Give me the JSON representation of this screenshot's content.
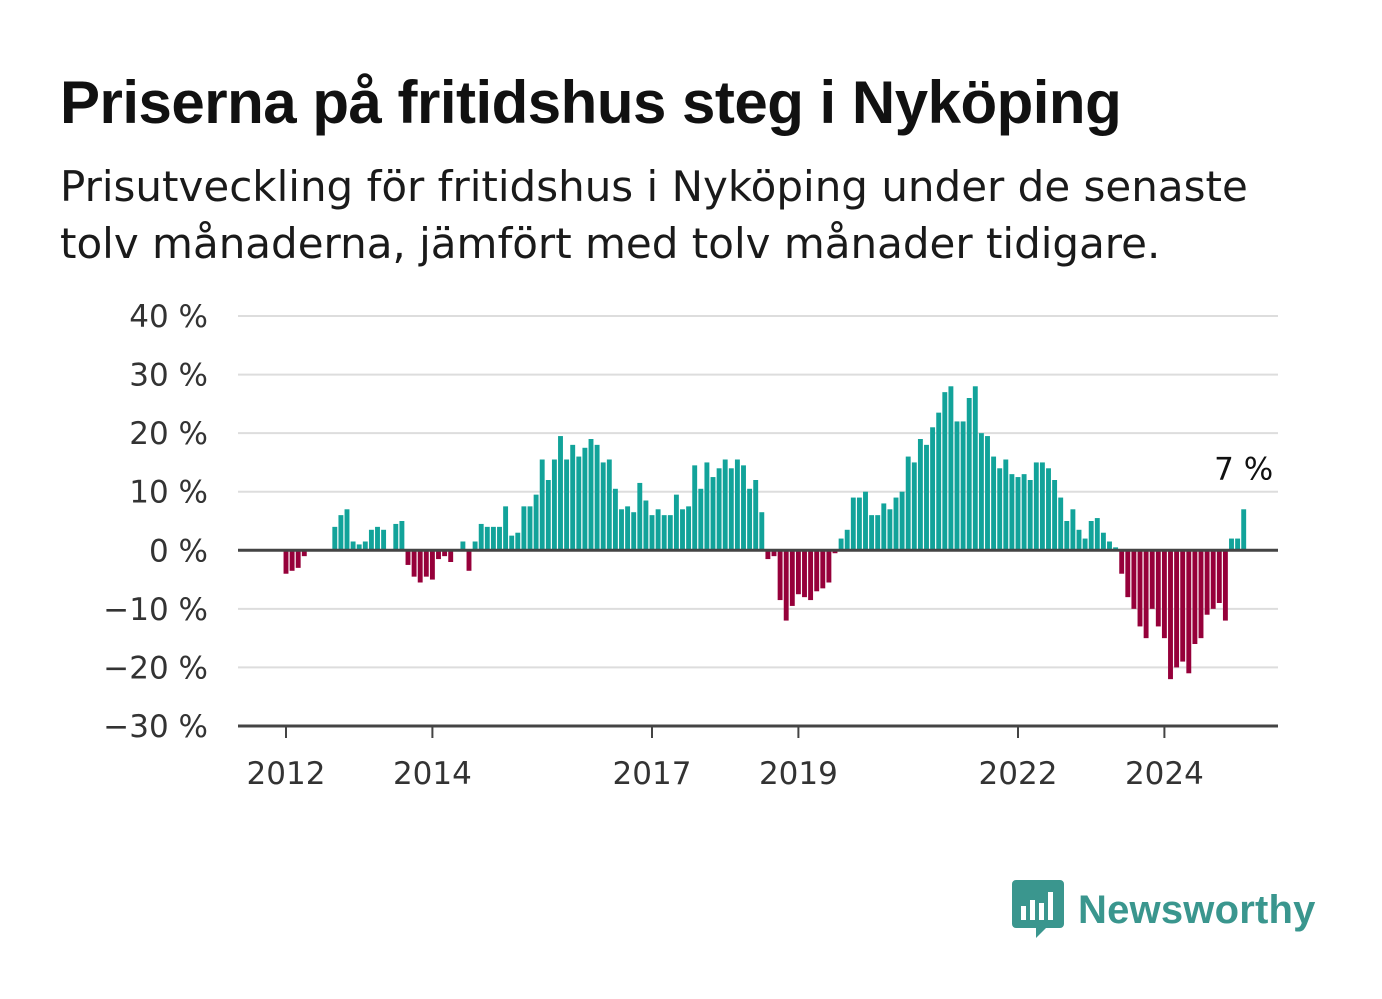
{
  "header": {
    "title": "Priserna på fritidshus steg i Nyköping",
    "subtitle": "Prisutveckling för fritidshus i Nyköping under de senaste tolv månaderna, jämfört med tolv månader tidigare."
  },
  "colors": {
    "positive": "#12a39a",
    "negative": "#96003a",
    "zero_line": "#444444",
    "grid": "#dddddd",
    "brand": "#3a968e"
  },
  "logo": {
    "text": "Newsworthy",
    "icon": "bar-chart-speech-bubble-icon"
  },
  "chart_data": {
    "type": "bar",
    "title": "Priserna på fritidshus steg i Nyköping",
    "subtitle": "Prisutveckling för fritidshus i Nyköping under de senaste tolv månaderna, jämfört med tolv månader tidigare.",
    "xlabel": "",
    "ylabel": "",
    "ylim": [
      -30,
      40
    ],
    "y_ticks": [
      -30,
      -20,
      -10,
      0,
      10,
      20,
      30,
      40
    ],
    "y_tick_labels": [
      "−30 %",
      "−20 %",
      "−10 %",
      "0 %",
      "10 %",
      "20 %",
      "30 %",
      "40 %"
    ],
    "x_tick_labels": [
      "2012",
      "2014",
      "2017",
      "2019",
      "2022",
      "2024"
    ],
    "grid": true,
    "start": "2012-01",
    "frequency": "monthly",
    "values": [
      -4,
      -3.5,
      -3,
      -1,
      0,
      0,
      0,
      0,
      4,
      6,
      7,
      1.5,
      1,
      1.5,
      3.5,
      4,
      3.5,
      0,
      4.5,
      5,
      -2.5,
      -4.5,
      -5.5,
      -4.5,
      -5,
      -1.5,
      -1,
      -2,
      0,
      1.5,
      -3.5,
      1.5,
      4.5,
      4,
      4,
      4,
      7.5,
      2.5,
      3,
      7.5,
      7.5,
      9.5,
      15.5,
      12,
      15.5,
      19.5,
      15.5,
      18,
      16,
      17.5,
      19,
      18,
      15,
      15.5,
      10.5,
      7,
      7.5,
      6.5,
      11.5,
      8.5,
      6,
      7,
      6,
      6,
      9.5,
      7,
      7.5,
      14.5,
      10.5,
      15,
      12.5,
      14,
      15.5,
      14,
      15.5,
      14.5,
      10.5,
      12,
      6.5,
      -1.5,
      -1,
      -8.5,
      -12,
      -9.5,
      -7.5,
      -8,
      -8.5,
      -7,
      -6.5,
      -5.5,
      -0.5,
      2,
      3.5,
      9,
      9,
      10,
      6,
      6,
      8,
      7,
      9,
      10,
      16,
      15,
      19,
      18,
      21,
      23.5,
      27,
      28,
      22,
      22,
      26,
      28,
      20,
      19.5,
      16,
      14,
      15.5,
      13,
      12.5,
      13,
      12,
      15,
      15,
      14,
      12,
      9,
      5,
      7,
      3.5,
      2,
      5,
      5.5,
      3,
      1.5,
      0.5,
      -4,
      -8,
      -10,
      -13,
      -15,
      -10,
      -13,
      -15,
      -22,
      -20,
      -19,
      -21,
      -16,
      -15,
      -11,
      -10,
      -9,
      -12,
      2,
      2,
      7
    ],
    "annotation": {
      "text": "7 %",
      "value": 7,
      "position": "last bar"
    }
  }
}
